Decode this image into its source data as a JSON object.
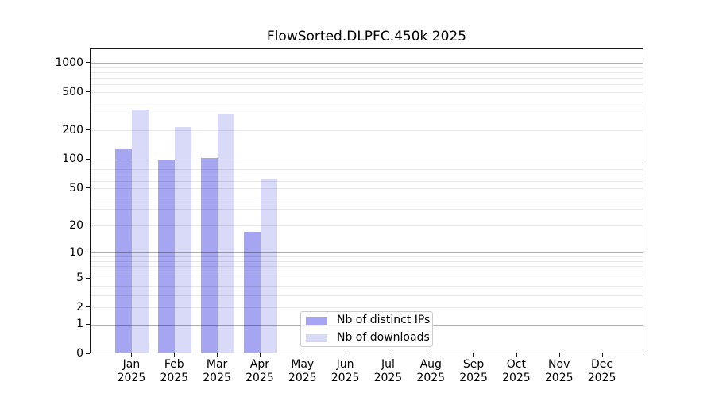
{
  "chart_data": {
    "type": "bar",
    "title": "FlowSorted.DLPFC.450k 2025",
    "categories": [
      "Jan 2025",
      "Feb 2025",
      "Mar 2025",
      "Apr 2025",
      "May 2025",
      "Jun 2025",
      "Jul 2025",
      "Aug 2025",
      "Sep 2025",
      "Oct 2025",
      "Nov 2025",
      "Dec 2025"
    ],
    "series": [
      {
        "name": "Nb of distinct IPs",
        "color": "#a5a5f2",
        "values": [
          127,
          98,
          102,
          17,
          null,
          null,
          null,
          null,
          null,
          null,
          null,
          null
        ]
      },
      {
        "name": "Nb of downloads",
        "color": "#d9d9f8",
        "values": [
          329,
          215,
          290,
          63,
          null,
          null,
          null,
          null,
          null,
          null,
          null,
          null
        ]
      }
    ],
    "yticks": [
      0,
      1,
      2,
      5,
      10,
      20,
      50,
      100,
      200,
      500,
      1000
    ],
    "yscale": "log1p",
    "ylim": [
      0,
      1400
    ],
    "grid": {
      "major_color": "#b0b0b0",
      "minor_color": "#e8e8e8"
    },
    "legend": {
      "entries": [
        "Nb of distinct IPs",
        "Nb of downloads"
      ]
    }
  }
}
